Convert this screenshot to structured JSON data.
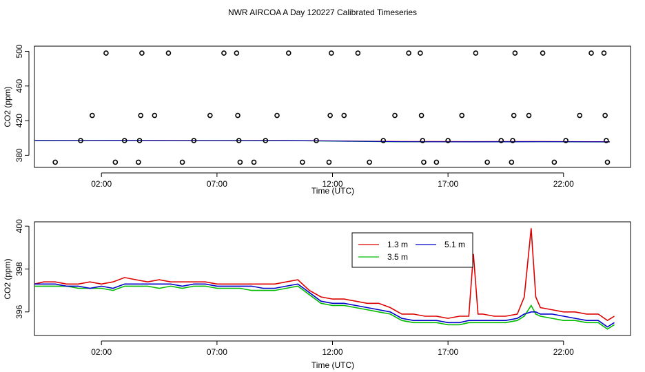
{
  "title": "NWR AIRCOA A  Day 120227  Calibrated Timeseries",
  "chart_data": [
    {
      "type": "scatter",
      "title": "",
      "xlabel": "Time (UTC)",
      "ylabel": "CO2 (ppm)",
      "xlim": [
        -0.9,
        24.9
      ],
      "ylim": [
        366,
        506
      ],
      "x_ticks": [
        2,
        7,
        12,
        17,
        22
      ],
      "x_tick_labels": [
        "02:00",
        "07:00",
        "12:00",
        "17:00",
        "22:00"
      ],
      "y_ticks": [
        380,
        420,
        460,
        500
      ],
      "y_tick_labels": [
        "380",
        "420",
        "460",
        "500"
      ],
      "points": [
        {
          "x": 1.1,
          "y": 397
        },
        {
          "x": 0.0,
          "y": 372
        },
        {
          "x": 1.6,
          "y": 426
        },
        {
          "x": 2.2,
          "y": 498
        },
        {
          "x": 2.6,
          "y": 372
        },
        {
          "x": 3.0,
          "y": 397
        },
        {
          "x": 3.6,
          "y": 372
        },
        {
          "x": 3.65,
          "y": 397
        },
        {
          "x": 3.7,
          "y": 426
        },
        {
          "x": 3.75,
          "y": 498
        },
        {
          "x": 4.3,
          "y": 426
        },
        {
          "x": 4.9,
          "y": 498
        },
        {
          "x": 5.5,
          "y": 372
        },
        {
          "x": 6.0,
          "y": 397
        },
        {
          "x": 6.7,
          "y": 426
        },
        {
          "x": 7.3,
          "y": 498
        },
        {
          "x": 7.85,
          "y": 498
        },
        {
          "x": 7.9,
          "y": 426
        },
        {
          "x": 7.95,
          "y": 397
        },
        {
          "x": 8.0,
          "y": 372
        },
        {
          "x": 8.6,
          "y": 372
        },
        {
          "x": 9.1,
          "y": 397
        },
        {
          "x": 9.6,
          "y": 426
        },
        {
          "x": 10.1,
          "y": 498
        },
        {
          "x": 10.7,
          "y": 372
        },
        {
          "x": 11.3,
          "y": 397
        },
        {
          "x": 11.85,
          "y": 372
        },
        {
          "x": 11.9,
          "y": 426
        },
        {
          "x": 11.95,
          "y": 498
        },
        {
          "x": 12.5,
          "y": 426
        },
        {
          "x": 13.1,
          "y": 498
        },
        {
          "x": 13.6,
          "y": 372
        },
        {
          "x": 14.2,
          "y": 397
        },
        {
          "x": 14.7,
          "y": 426
        },
        {
          "x": 15.3,
          "y": 498
        },
        {
          "x": 15.8,
          "y": 498
        },
        {
          "x": 15.85,
          "y": 426
        },
        {
          "x": 15.9,
          "y": 397
        },
        {
          "x": 15.95,
          "y": 372
        },
        {
          "x": 16.5,
          "y": 372
        },
        {
          "x": 17.0,
          "y": 397
        },
        {
          "x": 17.6,
          "y": 426
        },
        {
          "x": 18.2,
          "y": 498
        },
        {
          "x": 18.7,
          "y": 372
        },
        {
          "x": 19.3,
          "y": 397
        },
        {
          "x": 19.75,
          "y": 372
        },
        {
          "x": 19.8,
          "y": 397
        },
        {
          "x": 19.85,
          "y": 426
        },
        {
          "x": 19.9,
          "y": 498
        },
        {
          "x": 20.5,
          "y": 426
        },
        {
          "x": 21.1,
          "y": 498
        },
        {
          "x": 21.6,
          "y": 372
        },
        {
          "x": 22.1,
          "y": 397
        },
        {
          "x": 22.7,
          "y": 426
        },
        {
          "x": 23.2,
          "y": 498
        },
        {
          "x": 23.75,
          "y": 498
        },
        {
          "x": 23.8,
          "y": 426
        },
        {
          "x": 23.85,
          "y": 397
        },
        {
          "x": 23.9,
          "y": 372
        }
      ],
      "series": [
        {
          "color": "#dd0000",
          "x": [
            -0.9,
            3.0,
            7.0,
            10.0,
            12.0,
            15.0,
            18.0,
            21.0,
            24.0
          ],
          "values": [
            397.0,
            397.3,
            397.0,
            397.2,
            396.6,
            396.0,
            395.8,
            396.0,
            395.7
          ]
        },
        {
          "color": "#00bb00",
          "x": [
            -0.9,
            3.0,
            7.0,
            10.0,
            12.0,
            15.0,
            18.0,
            21.0,
            24.0
          ],
          "values": [
            396.8,
            397.0,
            396.8,
            396.9,
            396.3,
            395.5,
            395.4,
            395.6,
            395.3
          ]
        },
        {
          "color": "#0000cc",
          "x": [
            -0.9,
            3.0,
            7.0,
            10.0,
            12.0,
            15.0,
            18.0,
            21.0,
            24.0
          ],
          "values": [
            397.0,
            397.1,
            396.9,
            397.0,
            396.5,
            395.7,
            395.5,
            395.7,
            395.5
          ]
        }
      ],
      "grid": false,
      "legend": "none"
    },
    {
      "type": "line",
      "title": "",
      "xlabel": "Time (UTC)",
      "ylabel": "CO2 (ppm)",
      "xlim": [
        -0.9,
        24.9
      ],
      "ylim": [
        394.9,
        400.2
      ],
      "x_ticks": [
        2,
        7,
        12,
        17,
        22
      ],
      "x_tick_labels": [
        "02:00",
        "07:00",
        "12:00",
        "17:00",
        "22:00"
      ],
      "y_ticks": [
        396,
        398,
        400
      ],
      "y_tick_labels": [
        "396",
        "398",
        "400"
      ],
      "grid": false,
      "legend": "top-right",
      "x": [
        -0.9,
        -0.5,
        0.0,
        0.5,
        1.0,
        1.5,
        2.0,
        2.5,
        3.0,
        3.5,
        4.0,
        4.5,
        5.0,
        5.5,
        6.0,
        6.5,
        7.0,
        7.5,
        8.0,
        8.5,
        9.0,
        9.5,
        10.0,
        10.5,
        11.0,
        11.5,
        12.0,
        12.5,
        13.0,
        13.5,
        14.0,
        14.5,
        15.0,
        15.5,
        16.0,
        16.5,
        17.0,
        17.5,
        17.9,
        18.1,
        18.3,
        18.5,
        19.0,
        19.5,
        20.0,
        20.3,
        20.6,
        20.8,
        21.0,
        21.5,
        22.0,
        22.5,
        23.0,
        23.5,
        23.9,
        24.2
      ],
      "series": [
        {
          "name": "1.3 m",
          "color": "#dd0000",
          "values": [
            397.3,
            397.4,
            397.4,
            397.3,
            397.3,
            397.4,
            397.3,
            397.4,
            397.6,
            397.5,
            397.4,
            397.5,
            397.4,
            397.4,
            397.4,
            397.4,
            397.3,
            397.3,
            397.3,
            397.3,
            397.3,
            397.3,
            397.4,
            397.5,
            397.0,
            396.7,
            396.6,
            396.6,
            396.5,
            396.4,
            396.4,
            396.2,
            395.9,
            395.9,
            395.8,
            395.8,
            395.7,
            395.8,
            395.8,
            398.7,
            395.9,
            395.9,
            395.8,
            395.8,
            395.9,
            396.7,
            399.9,
            396.7,
            396.2,
            396.1,
            396.0,
            396.0,
            395.9,
            395.9,
            395.6,
            395.8
          ]
        },
        {
          "name": "3.5 m",
          "color": "#00bb00",
          "values": [
            397.2,
            397.2,
            397.2,
            397.2,
            397.1,
            397.1,
            397.1,
            397.0,
            397.2,
            397.2,
            397.2,
            397.1,
            397.2,
            397.1,
            397.2,
            397.2,
            397.1,
            397.1,
            397.1,
            397.0,
            397.0,
            397.0,
            397.1,
            397.2,
            396.8,
            396.4,
            396.3,
            396.3,
            396.2,
            396.1,
            396.0,
            395.9,
            395.6,
            395.5,
            395.5,
            395.5,
            395.4,
            395.4,
            395.5,
            395.5,
            395.5,
            395.5,
            395.5,
            395.5,
            395.6,
            395.8,
            396.3,
            395.9,
            395.8,
            395.7,
            395.6,
            395.6,
            395.5,
            395.5,
            395.2,
            395.4
          ]
        },
        {
          "name": "5.1 m",
          "color": "#0000cc",
          "values": [
            397.3,
            397.3,
            397.3,
            397.2,
            397.2,
            397.1,
            397.2,
            397.1,
            397.3,
            397.3,
            397.3,
            397.3,
            397.3,
            397.2,
            397.3,
            397.3,
            397.2,
            397.2,
            397.2,
            397.2,
            397.1,
            397.1,
            397.2,
            397.3,
            396.9,
            396.5,
            396.4,
            396.4,
            396.3,
            396.2,
            396.1,
            396.0,
            395.7,
            395.6,
            395.6,
            395.6,
            395.5,
            395.5,
            395.6,
            395.6,
            395.6,
            395.6,
            395.6,
            395.6,
            395.7,
            395.9,
            396.0,
            396.0,
            395.9,
            395.9,
            395.8,
            395.7,
            395.6,
            395.6,
            395.3,
            395.5
          ]
        }
      ]
    }
  ]
}
